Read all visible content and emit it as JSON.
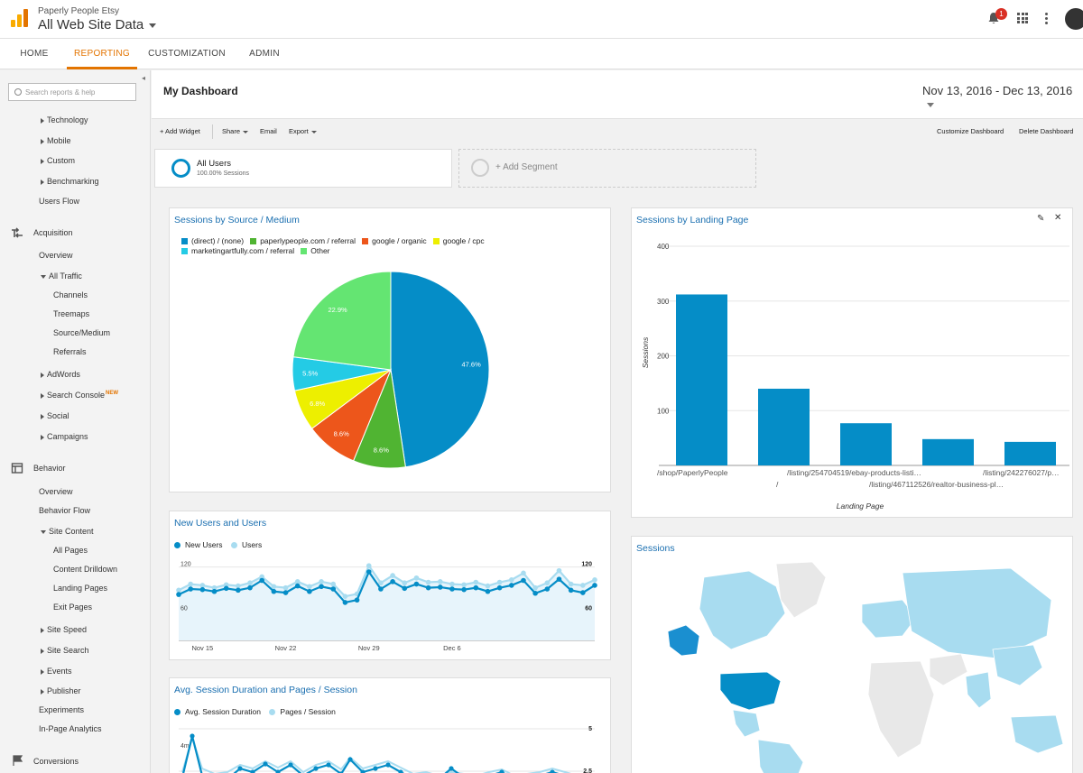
{
  "header": {
    "account": "Paperly People Etsy",
    "property": "All Web Site Data",
    "notification_count": "1"
  },
  "nav_tabs": [
    "HOME",
    "REPORTING",
    "CUSTOMIZATION",
    "ADMIN"
  ],
  "sidebar": {
    "search_placeholder": "Search reports & help",
    "audience_items": [
      "Technology",
      "Mobile",
      "Custom",
      "Benchmarking"
    ],
    "users_flow": "Users Flow",
    "acquisition": {
      "label": "Acquisition",
      "overview": "Overview",
      "all_traffic": "All Traffic",
      "sub": [
        "Channels",
        "Treemaps",
        "Source/Medium",
        "Referrals"
      ],
      "more": [
        "AdWords",
        "Search Console",
        "Social",
        "Campaigns"
      ],
      "new_badge": "NEW"
    },
    "behavior": {
      "label": "Behavior",
      "overview": "Overview",
      "flow": "Behavior Flow",
      "site_content": "Site Content",
      "sub": [
        "All Pages",
        "Content Drilldown",
        "Landing Pages",
        "Exit Pages"
      ],
      "more": [
        "Site Speed",
        "Site Search",
        "Events",
        "Publisher"
      ],
      "plain": [
        "Experiments",
        "In-Page Analytics"
      ]
    },
    "conversions": "Conversions"
  },
  "dashboard": {
    "title": "My Dashboard",
    "date_range": "Nov 13, 2016 - Dec 13, 2016",
    "toolbar": {
      "add_widget": "+ Add Widget",
      "share": "Share",
      "email": "Email",
      "export": "Export",
      "customize": "Customize Dashboard",
      "delete": "Delete Dashboard"
    },
    "segment": {
      "name": "All Users",
      "sub": "100.00% Sessions",
      "add": "+ Add Segment"
    }
  },
  "colors": {
    "accent": "#e37400",
    "blue": "#058dc7",
    "light_blue": "#a8dcf0",
    "title": "#1a6fb0"
  },
  "chart_data": [
    {
      "type": "pie",
      "title": "Sessions by Source / Medium",
      "categories": [
        "(direct) / (none)",
        "paperlypeople.com / referral",
        "google / organic",
        "google / cpc",
        "marketingartfully.com / referral",
        "Other"
      ],
      "values": [
        47.6,
        8.6,
        8.6,
        6.8,
        5.5,
        22.9
      ],
      "labels": [
        "47.6%",
        "8.6%",
        "8.6%",
        "6.8%",
        "5.5%",
        "22.9%"
      ],
      "colors": [
        "#058dc7",
        "#50b432",
        "#ed561b",
        "#edef00",
        "#24cbe5",
        "#64e572"
      ]
    },
    {
      "type": "bar",
      "title": "Sessions by Landing Page",
      "categories": [
        "/shop/PaperlyPeople",
        "/",
        "/listing/254704519/ebay-products-listi…",
        "/listing/467112526/realtor-business-pl…",
        "/listing/242276027/p…"
      ],
      "values": [
        312,
        140,
        77,
        48,
        43
      ],
      "ylabel": "Sessions",
      "xlabel": "Landing Page",
      "ylim": [
        0,
        400
      ],
      "yticks": [
        "400",
        "300",
        "200",
        "100"
      ]
    },
    {
      "type": "line",
      "title": "New Users and Users",
      "series": [
        {
          "name": "New Users",
          "values": [
            75,
            84,
            83,
            80,
            85,
            82,
            86,
            98,
            80,
            78,
            89,
            80,
            88,
            84,
            62,
            66,
            112,
            84,
            96,
            85,
            92,
            86,
            87,
            84,
            83,
            86,
            80,
            86,
            90,
            98,
            77,
            84,
            100,
            82,
            78,
            90
          ]
        },
        {
          "name": "Users",
          "values": [
            82,
            92,
            90,
            86,
            91,
            89,
            94,
            104,
            88,
            86,
            96,
            88,
            96,
            92,
            72,
            76,
            122,
            94,
            106,
            94,
            102,
            95,
            96,
            92,
            91,
            95,
            89,
            95,
            99,
            110,
            86,
            94,
            114,
            92,
            90,
            99
          ]
        }
      ],
      "ylim": [
        0,
        140
      ],
      "left_ticks": [
        "120",
        "60"
      ],
      "right_ticks": [
        "120",
        "60"
      ],
      "x_ticks": [
        "Nov 15",
        "Nov 22",
        "Nov 29",
        "Dec 6"
      ]
    },
    {
      "type": "line",
      "title": "Avg. Session Duration and Pages / Session",
      "series": [
        {
          "name": "Avg. Session Duration"
        },
        {
          "name": "Pages / Session"
        }
      ],
      "left_ticks": [
        "4m"
      ],
      "right_ticks": [
        "5",
        "2.5"
      ]
    }
  ],
  "map": {
    "title": "Sessions"
  }
}
